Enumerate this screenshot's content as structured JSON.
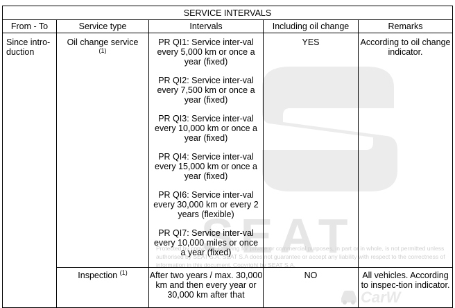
{
  "title": "SERVICE INTERVALS",
  "columns": [
    "From - To",
    "Service type",
    "Intervals",
    "Including oil change",
    "Remarks"
  ],
  "rows": {
    "oil": {
      "from_to": "Since intro-duction",
      "service_type": "Oil change service",
      "note_ref": "(1)",
      "intervals": [
        "PR QI1: Service inter-val every 5,000 km or once a year (fixed)",
        "PR QI2: Service inter-val every 7,500 km or once a year (fixed)",
        "PR QI3: Service inter-val every 10,000 km or once a year (fixed)",
        "PR QI4: Service inter-val every 15,000 km or once a year (fixed)",
        "PR QI6: Service inter-val every 30,000 km or every 2 years (flexible)",
        "PR QI7: Service inter-val every 10,000 miles or once a year (fixed)"
      ],
      "oil_change": "YES",
      "remarks": "According to oil change indicator."
    },
    "inspection": {
      "service_type": "Inspection",
      "note_ref": "(1)",
      "intervals": "After two years / max. 30,000 km and then every year or 30,000 km after that",
      "oil_change": "NO",
      "remarks": "All vehicles. According to inspec-tion indicator."
    }
  },
  "watermark": {
    "brand_word": "SEAT",
    "copyright": "Protected by copyright. Copying for private or commercial purposes, in part or in whole, is not permitted unless authorised by SEAT S.A. SEAT S.A does not guarantee or accept any liability with respect to the correctness of information in this document. Copyright by SEAT S.A.",
    "site": "CarW"
  }
}
